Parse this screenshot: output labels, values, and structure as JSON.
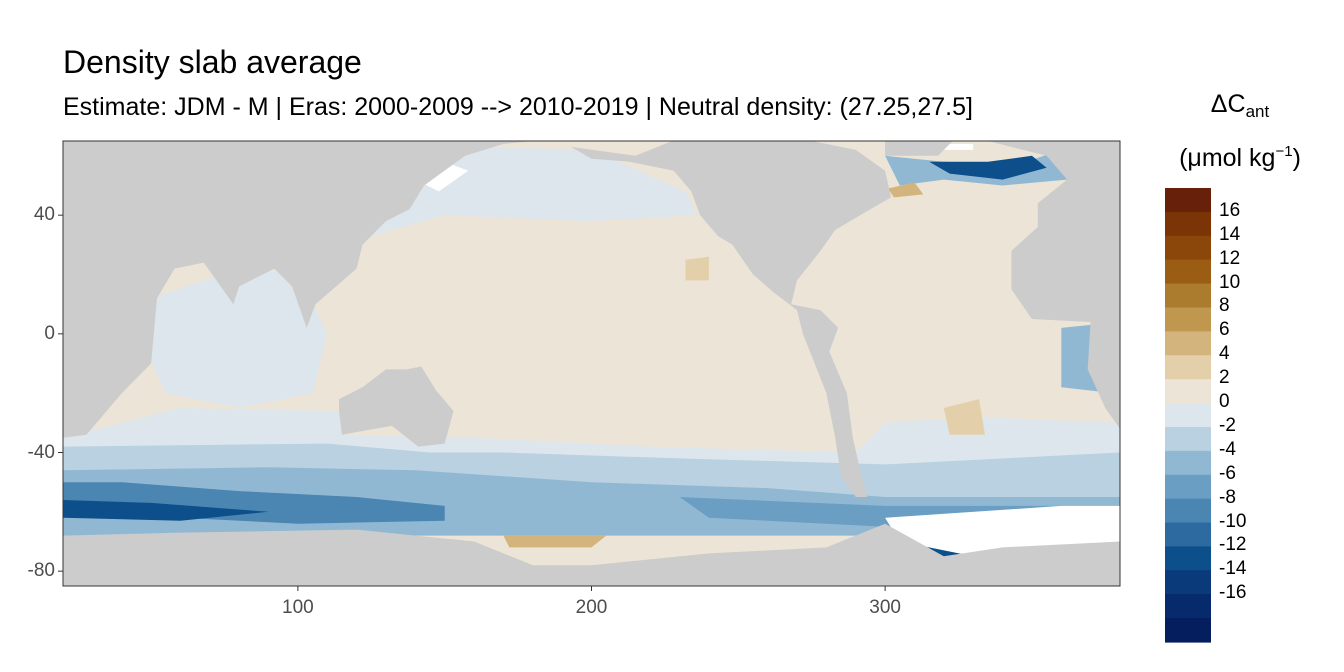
{
  "title": "Density slab average",
  "subtitle": "Estimate: JDM - M | Eras: 2000-2009 --> 2010-2019 | Neutral density: (27.25,27.5]",
  "legend": {
    "title_main": "ΔC",
    "title_sub": "ant",
    "unit_prefix": "(μmol kg",
    "unit_sup": "−1",
    "unit_suffix": ")",
    "labels": [
      "16",
      "14",
      "12",
      "10",
      "8",
      "6",
      "4",
      "2",
      "0",
      "-2",
      "-4",
      "-6",
      "-8",
      "-10",
      "-12",
      "-14",
      "-16"
    ],
    "colors": [
      "#67200a",
      "#7b3405",
      "#8b4609",
      "#9b5d14",
      "#ab7b2e",
      "#bf974f",
      "#d2b47c",
      "#e3cfa9",
      "#ece4d6",
      "#dde6ec",
      "#b9d1e0",
      "#91b8d2",
      "#6a9ec3",
      "#4b85b2",
      "#2c6aa0",
      "#0d4f8b",
      "#0a3a7a",
      "#072a6c",
      "#051e5e"
    ]
  },
  "colors": {
    "land": "#cccccc",
    "ocean_neutral": "#ece4d6",
    "no_data": "#ffffff",
    "panel_border": "#333333"
  },
  "chart_data": {
    "type": "heatmap",
    "title": "Density slab average",
    "subtitle": "Estimate: JDM - M | Eras: 2000-2009 --> 2010-2019 | Neutral density: (27.25,27.5]",
    "xlabel": "",
    "ylabel": "",
    "xlim": [
      20,
      380
    ],
    "ylim": [
      -85,
      65
    ],
    "x_ticks": [
      "100",
      "200",
      "300"
    ],
    "y_ticks": [
      "40",
      "0",
      "-40",
      "-80"
    ],
    "x_tick_values": [
      100,
      200,
      300
    ],
    "y_tick_values": [
      40,
      0,
      -40,
      -80
    ],
    "color_scale": {
      "variable": "ΔCant",
      "unit": "μmol kg−1",
      "min": -18,
      "max": 18,
      "step": 2,
      "palette": "brown-white-blue diverging"
    },
    "land": {
      "americas": [
        [
          193,
          63
        ],
        [
          215,
          60
        ],
        [
          235,
          68
        ],
        [
          270,
          66
        ],
        [
          290,
          62
        ],
        [
          300,
          55
        ],
        [
          302,
          46
        ],
        [
          295,
          42
        ],
        [
          283,
          35
        ],
        [
          278,
          28
        ],
        [
          270,
          18
        ],
        [
          268,
          10
        ],
        [
          278,
          8
        ],
        [
          284,
          2
        ],
        [
          281,
          -6
        ],
        [
          287,
          -20
        ],
        [
          289,
          -35
        ],
        [
          292,
          -48
        ],
        [
          294,
          -55
        ],
        [
          290,
          -55
        ],
        [
          285,
          -48
        ],
        [
          283,
          -35
        ],
        [
          280,
          -20
        ],
        [
          272,
          0
        ],
        [
          270,
          8
        ],
        [
          262,
          14
        ],
        [
          255,
          20
        ],
        [
          248,
          30
        ],
        [
          243,
          33
        ],
        [
          237,
          40
        ],
        [
          234,
          48
        ],
        [
          228,
          55
        ],
        [
          213,
          58
        ],
        [
          200,
          59
        ]
      ],
      "eurasia_africa": [
        [
          20,
          65
        ],
        [
          20,
          -35
        ],
        [
          28,
          -34
        ],
        [
          40,
          -20
        ],
        [
          50,
          -10
        ],
        [
          52,
          12
        ],
        [
          58,
          22
        ],
        [
          68,
          24
        ],
        [
          78,
          10
        ],
        [
          80,
          16
        ],
        [
          92,
          22
        ],
        [
          98,
          16
        ],
        [
          103,
          2
        ],
        [
          106,
          10
        ],
        [
          120,
          22
        ],
        [
          122,
          30
        ],
        [
          130,
          38
        ],
        [
          138,
          42
        ],
        [
          143,
          50
        ],
        [
          157,
          60
        ],
        [
          170,
          64
        ],
        [
          190,
          66
        ],
        [
          190,
          65
        ]
      ],
      "europe_africa_east": [
        [
          335,
          65
        ],
        [
          355,
          60
        ],
        [
          362,
          52
        ],
        [
          352,
          44
        ],
        [
          352,
          36
        ],
        [
          343,
          28
        ],
        [
          343,
          15
        ],
        [
          350,
          5
        ],
        [
          370,
          4
        ],
        [
          369,
          -12
        ],
        [
          375,
          -25
        ],
        [
          380,
          -32
        ],
        [
          380,
          65
        ]
      ],
      "australia": [
        [
          114,
          -22
        ],
        [
          122,
          -18
        ],
        [
          130,
          -12
        ],
        [
          137,
          -12
        ],
        [
          142,
          -11
        ],
        [
          147,
          -19
        ],
        [
          153,
          -26
        ],
        [
          150,
          -37
        ],
        [
          141,
          -38
        ],
        [
          132,
          -31
        ],
        [
          115,
          -34
        ],
        [
          114,
          -26
        ]
      ],
      "greenland": [
        [
          300,
          60
        ],
        [
          300,
          76
        ],
        [
          330,
          76
        ],
        [
          325,
          67
        ],
        [
          318,
          60
        ]
      ],
      "antarctica": [
        [
          20,
          -68
        ],
        [
          60,
          -67
        ],
        [
          120,
          -66
        ],
        [
          160,
          -70
        ],
        [
          180,
          -78
        ],
        [
          200,
          -78
        ],
        [
          240,
          -74
        ],
        [
          280,
          -72
        ],
        [
          300,
          -64
        ],
        [
          320,
          -75
        ],
        [
          340,
          -72
        ],
        [
          380,
          -70
        ],
        [
          380,
          -90
        ],
        [
          20,
          -90
        ]
      ]
    }
  }
}
